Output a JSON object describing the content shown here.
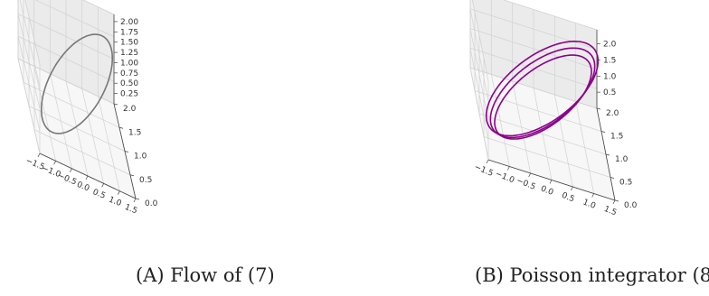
{
  "chart_data": [
    {
      "type": "line3d",
      "series": [
        {
          "color": "#777777",
          "turns": [
            {
              "cx": 0.0,
              "cy": 1.0,
              "cz": 1.0,
              "ax": 1.45,
              "ay": 1.0,
              "az": 0.95
            }
          ]
        }
      ],
      "xticks": [
        "−1.5",
        "−1.0",
        "−0.5",
        "0.0",
        "0.5",
        "1.0",
        "1.5"
      ],
      "yticks": [
        "0.0",
        "0.5",
        "1.0",
        "1.5",
        "2.0"
      ],
      "zticks": [
        "0.25",
        "0.50",
        "0.75",
        "1.00",
        "1.25",
        "1.50",
        "1.75",
        "2.00"
      ],
      "xlim": [
        -1.5,
        1.5
      ],
      "ylim": [
        0,
        2
      ],
      "zlim": [
        0,
        2
      ],
      "grid": true,
      "caption_label": "(A)",
      "caption_text": "Flow of (7)"
    },
    {
      "type": "line3d",
      "series": [
        {
          "color": "#8b008b",
          "turns": [
            {
              "cx": 0.0,
              "cy": 0.95,
              "cz": 1.0,
              "ax": 1.35,
              "ay": 0.95,
              "az": 0.85
            },
            {
              "cx": 0.0,
              "cy": 1.0,
              "cz": 1.05,
              "ax": 1.45,
              "ay": 1.0,
              "az": 0.92
            },
            {
              "cx": 0.0,
              "cy": 1.05,
              "cz": 1.1,
              "ax": 1.55,
              "ay": 1.05,
              "az": 0.98
            }
          ]
        }
      ],
      "xticks": [
        "−1.5",
        "−1.0",
        "−0.5",
        "0.0",
        "0.5",
        "1.0",
        "1.5"
      ],
      "yticks": [
        "0.0",
        "0.5",
        "1.0",
        "1.5",
        "2.0"
      ],
      "zticks": [
        "0.5",
        "1.0",
        "1.5",
        "2.0"
      ],
      "xlim": [
        -1.5,
        1.5
      ],
      "ylim": [
        0,
        2
      ],
      "zlim": [
        0,
        2
      ],
      "grid": true,
      "caption_label": "(B)",
      "caption_text": "Poisson integrator (8)"
    }
  ]
}
